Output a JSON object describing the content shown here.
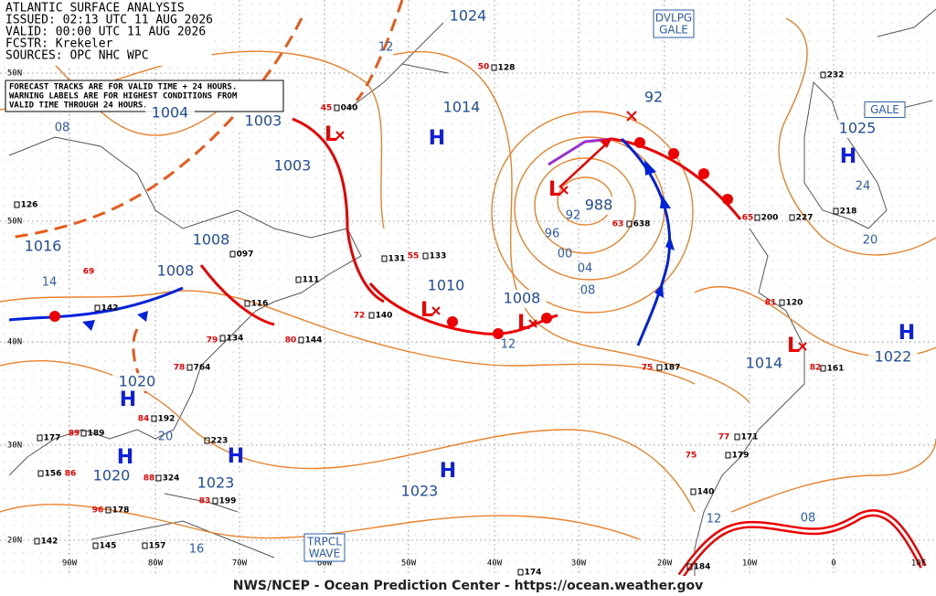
{
  "header": {
    "lines": [
      "ATLANTIC SURFACE ANALYSIS",
      "ISSUED: 02:13 UTC 11 AUG 2026",
      "VALID:  00:00 UTC 11 AUG 2026",
      "FCSTR:  Krekeler",
      "SOURCES: OPC NHC WPC"
    ],
    "note": [
      "FORECAST TRACKS ARE FOR VALID TIME + 24 HOURS.",
      "WARNING LABELS ARE FOR HIGHEST CONDITIONS FROM",
      "VALID TIME THROUGH 24 HOURS."
    ]
  },
  "pressure_labels": [
    "1024",
    "1014",
    "1004",
    "1003",
    "1003",
    "1016",
    "1008",
    "1008",
    "1010",
    "1008",
    "988",
    "92",
    "1025",
    "1022",
    "1014",
    "1020",
    "1020",
    "1023",
    "1023"
  ],
  "highs": [
    "H",
    "H",
    "H",
    "H",
    "H",
    "H",
    "H"
  ],
  "lows": [
    "L",
    "L",
    "L",
    "L",
    "L"
  ],
  "isobar_labels": [
    "12",
    "08",
    "14",
    "96",
    "00",
    "04",
    "08",
    "12",
    "92",
    "24",
    "20",
    "20",
    "16",
    "12",
    "08"
  ],
  "latitudes": [
    "50N",
    "50N",
    "40N",
    "30N",
    "20N"
  ],
  "longitudes": [
    "90W",
    "80W",
    "70W",
    "60W",
    "50W",
    "40W",
    "30W",
    "20W",
    "10W",
    "0",
    "10E"
  ],
  "warnings": [
    {
      "lines": [
        "DVLPG",
        "GALE"
      ]
    },
    {
      "lines": [
        "GALE"
      ]
    },
    {
      "lines": [
        "TRPCL",
        "WAVE"
      ]
    }
  ],
  "station_pressures": [
    "040",
    "128",
    "638",
    "133",
    "131",
    "140",
    "144",
    "116",
    "097",
    "142",
    "126",
    "187",
    "161",
    "120",
    "200",
    "227",
    "218",
    "232",
    "171",
    "179",
    "140",
    "184",
    "174",
    "192",
    "223",
    "189",
    "177",
    "156",
    "178",
    "199",
    "324",
    "142",
    "145",
    "157",
    "764",
    "134",
    "111"
  ],
  "station_temps": [
    "45",
    "50",
    "55",
    "63",
    "65",
    "72",
    "80",
    "69",
    "81",
    "82",
    "75",
    "77",
    "75",
    "89",
    "86",
    "96",
    "83",
    "84",
    "88",
    "78",
    "79"
  ],
  "footer": "NWS/NCEP - Ocean Prediction Center - https://ocean.weather.gov"
}
